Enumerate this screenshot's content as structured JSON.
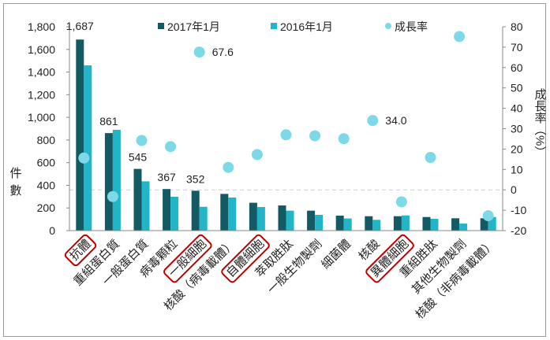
{
  "chart_data": {
    "type": "bar",
    "title": "",
    "ylabel": "件數",
    "y2label": "成長率（%）",
    "ylim": [
      0,
      1800
    ],
    "y2lim": [
      -20,
      80
    ],
    "yticks": [
      "0",
      "200",
      "400",
      "600",
      "800",
      "1,000",
      "1,200",
      "1,400",
      "1,600",
      "1,800"
    ],
    "y2ticks": [
      "-20",
      "-10",
      "0",
      "10",
      "20",
      "30",
      "40",
      "50",
      "60",
      "70",
      "80"
    ],
    "legend_position": "top",
    "categories": [
      "抗體",
      "重組蛋白質",
      "一般蛋白質",
      "病毒顆粒",
      "一般細胞",
      "核酸（病毒載體）",
      "自體細胞",
      "萃取胜肽",
      "一般生物製劑",
      "細菌體",
      "核酸",
      "異體細胞",
      "重組胜肽",
      "其他生物製劑",
      "核酸（非病毒載體）"
    ],
    "highlighted": [
      0,
      4,
      6,
      11
    ],
    "series": [
      {
        "name": "2017年1月",
        "kind": "bar",
        "axis": "left",
        "color": "#135a64",
        "values": [
          1687,
          861,
          545,
          367,
          352,
          324,
          246,
          222,
          176,
          132,
          127,
          127,
          120,
          109,
          109
        ]
      },
      {
        "name": "2016年1月",
        "kind": "bar",
        "axis": "left",
        "color": "#22b5c8",
        "values": [
          1459,
          890,
          435,
          299,
          210,
          292,
          208,
          176,
          139,
          107,
          95,
          134,
          104,
          62,
          120
        ]
      },
      {
        "name": "成長率",
        "kind": "scatter",
        "axis": "right",
        "color": "#7dd9e8",
        "values": [
          15.6,
          -3.3,
          24.2,
          21.2,
          67.6,
          11.0,
          17.3,
          27.0,
          26.5,
          25.1,
          34.0,
          -5.9,
          15.9,
          75.2,
          -12.7
        ]
      }
    ],
    "data_labels": [
      {
        "series": 0,
        "index": 0,
        "text": "1,687"
      },
      {
        "series": 0,
        "index": 1,
        "text": "861"
      },
      {
        "series": 0,
        "index": 2,
        "text": "545"
      },
      {
        "series": 0,
        "index": 3,
        "text": "367"
      },
      {
        "series": 0,
        "index": 4,
        "text": "352"
      },
      {
        "series": 2,
        "index": 4,
        "text": "67.6"
      },
      {
        "series": 2,
        "index": 10,
        "text": "34.0"
      }
    ],
    "reference_line": {
      "axis": "right",
      "value": 0,
      "style": "dashed"
    }
  }
}
